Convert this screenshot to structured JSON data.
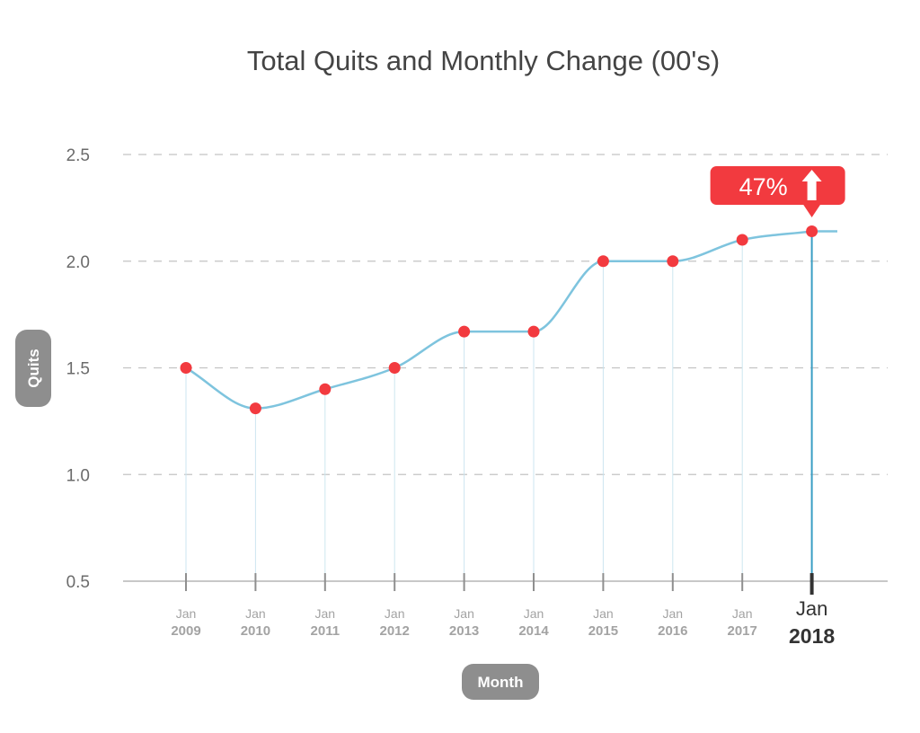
{
  "chart_data": {
    "type": "line",
    "title": "Total Quits and Monthly Change (00's)",
    "xlabel": "Month",
    "ylabel": "Quits",
    "ylim": [
      0.5,
      2.5
    ],
    "yticks": [
      "0.5",
      "1.0",
      "1.5",
      "2.0",
      "2.5"
    ],
    "grid": true,
    "categories": [
      {
        "month": "Jan",
        "year": "2009"
      },
      {
        "month": "Jan",
        "year": "2010"
      },
      {
        "month": "Jan",
        "year": "2011"
      },
      {
        "month": "Jan",
        "year": "2012"
      },
      {
        "month": "Jan",
        "year": "2013"
      },
      {
        "month": "Jan",
        "year": "2014"
      },
      {
        "month": "Jan",
        "year": "2015"
      },
      {
        "month": "Jan",
        "year": "2016"
      },
      {
        "month": "Jan",
        "year": "2017"
      },
      {
        "month": "Jan",
        "year": "2018"
      }
    ],
    "values": [
      1.5,
      1.31,
      1.4,
      1.5,
      1.67,
      1.67,
      2.0,
      2.0,
      2.1,
      2.14
    ],
    "highlight_index": 9,
    "callout": {
      "text": "47%",
      "direction": "up"
    },
    "colors": {
      "line": "#7ec4de",
      "marker": "#f23a3f",
      "callout": "#f23a3f",
      "highlight_drop": "#3a9ec4",
      "label_pill": "#8e8e8e"
    }
  }
}
